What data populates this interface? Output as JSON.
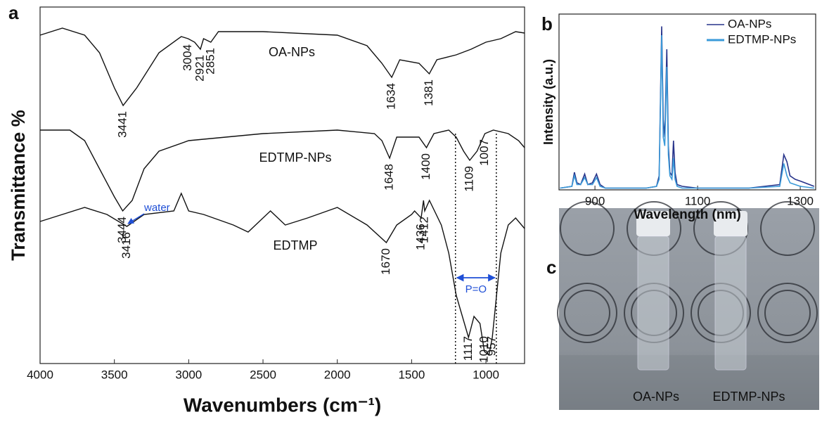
{
  "chart_data": [
    {
      "type": "line",
      "panel_label": "a",
      "x_label": "Wavenumbers (cm⁻¹)",
      "y_label": "Transmittance %",
      "xlim": [
        4000,
        740
      ],
      "xticks": [
        4000,
        3500,
        3000,
        2500,
        2000,
        1500,
        1000
      ],
      "ylim": [
        0,
        507
      ],
      "series": [
        {
          "name": "OA-NPs",
          "color": "#111111",
          "x": [
            4000,
            3850,
            3700,
            3600,
            3500,
            3441,
            3350,
            3200,
            3050,
            3004,
            2960,
            2921,
            2900,
            2851,
            2800,
            2500,
            2000,
            1800,
            1700,
            1634,
            1580,
            1450,
            1381,
            1330,
            1200,
            1100,
            1000,
            900,
            800,
            740
          ],
          "values": [
            467,
            477,
            467,
            442,
            392,
            367,
            392,
            442,
            465,
            462,
            457,
            447,
            462,
            457,
            472,
            472,
            467,
            452,
            427,
            407,
            432,
            427,
            412,
            432,
            439,
            447,
            457,
            462,
            472,
            470
          ],
          "peaks": [
            3441,
            3004,
            2921,
            2851,
            1634,
            1381
          ]
        },
        {
          "name": "EDTMP-NPs",
          "color": "#111111",
          "x": [
            4000,
            3800,
            3700,
            3600,
            3500,
            3444,
            3380,
            3300,
            3200,
            3000,
            2500,
            2000,
            1750,
            1700,
            1648,
            1600,
            1450,
            1400,
            1350,
            1250,
            1200,
            1150,
            1109,
            1060,
            1007,
            950,
            850,
            780,
            740
          ],
          "values": [
            332,
            332,
            317,
            277,
            237,
            217,
            232,
            277,
            302,
            317,
            327,
            332,
            327,
            317,
            292,
            322,
            322,
            307,
            327,
            332,
            322,
            302,
            289,
            302,
            327,
            332,
            327,
            317,
            307
          ],
          "peaks": [
            3444,
            1648,
            1400,
            1109,
            1007
          ]
        },
        {
          "name": "EDTMP",
          "color": "#111111",
          "x": [
            4000,
            3700,
            3550,
            3416,
            3300,
            3100,
            3050,
            3000,
            2900,
            2700,
            2600,
            2450,
            2350,
            2200,
            2000,
            1800,
            1670,
            1600,
            1500,
            1480,
            1436,
            1420,
            1412,
            1380,
            1300,
            1250,
            1200,
            1117,
            1080,
            1040,
            1010,
            980,
            957,
            900,
            850,
            800,
            740
          ],
          "values": [
            202,
            222,
            212,
            195,
            212,
            217,
            242,
            217,
            212,
            197,
            187,
            217,
            197,
            207,
            222,
            197,
            172,
            197,
            212,
            217,
            207,
            232,
            217,
            232,
            197,
            157,
            97,
            37,
            67,
            57,
            17,
            12,
            37,
            157,
            197,
            207,
            192
          ],
          "peaks": [
            3416,
            1670,
            1436,
            1412,
            1117,
            1010,
            957
          ]
        }
      ],
      "annotations": {
        "water": "water",
        "po_label": "P=O",
        "po_range": [
          1205,
          930
        ]
      }
    },
    {
      "type": "line",
      "panel_label": "b",
      "x_label": "Wavelength (nm)",
      "y_label": "Intensity (a.u.)",
      "xlim": [
        830,
        1330
      ],
      "xticks": [
        900,
        1100,
        1300
      ],
      "ylim": [
        0,
        100
      ],
      "legend": "upper right",
      "x": [
        832,
        855,
        860,
        865,
        872,
        880,
        886,
        895,
        903,
        910,
        920,
        1000,
        1020,
        1025,
        1030,
        1033,
        1036,
        1040,
        1043,
        1046,
        1050,
        1053,
        1056,
        1060,
        1070,
        1100,
        1200,
        1260,
        1268,
        1274,
        1280,
        1290,
        1300,
        1327
      ],
      "series": [
        {
          "name": "OA-NPs",
          "color": "#27338a",
          "values": [
            1,
            2,
            10,
            4,
            3,
            9,
            3,
            4,
            9,
            3,
            1,
            1,
            2,
            8,
            93,
            40,
            30,
            80,
            25,
            10,
            8,
            28,
            10,
            3,
            2,
            1,
            1,
            3,
            20,
            16,
            8,
            6,
            5,
            2
          ]
        },
        {
          "name": "EDTMP-NPs",
          "color": "#3a9ad9",
          "values": [
            1,
            2,
            8,
            3,
            3,
            7,
            3,
            3,
            7,
            2,
            1,
            1,
            2,
            6,
            88,
            30,
            25,
            70,
            20,
            8,
            6,
            18,
            6,
            2,
            1,
            1,
            1,
            2,
            15,
            8,
            4,
            3,
            2,
            1
          ]
        }
      ]
    }
  ],
  "photo": {
    "panel_label": "c",
    "labels": [
      "OA-NPs",
      "EDTMP-NPs"
    ]
  }
}
